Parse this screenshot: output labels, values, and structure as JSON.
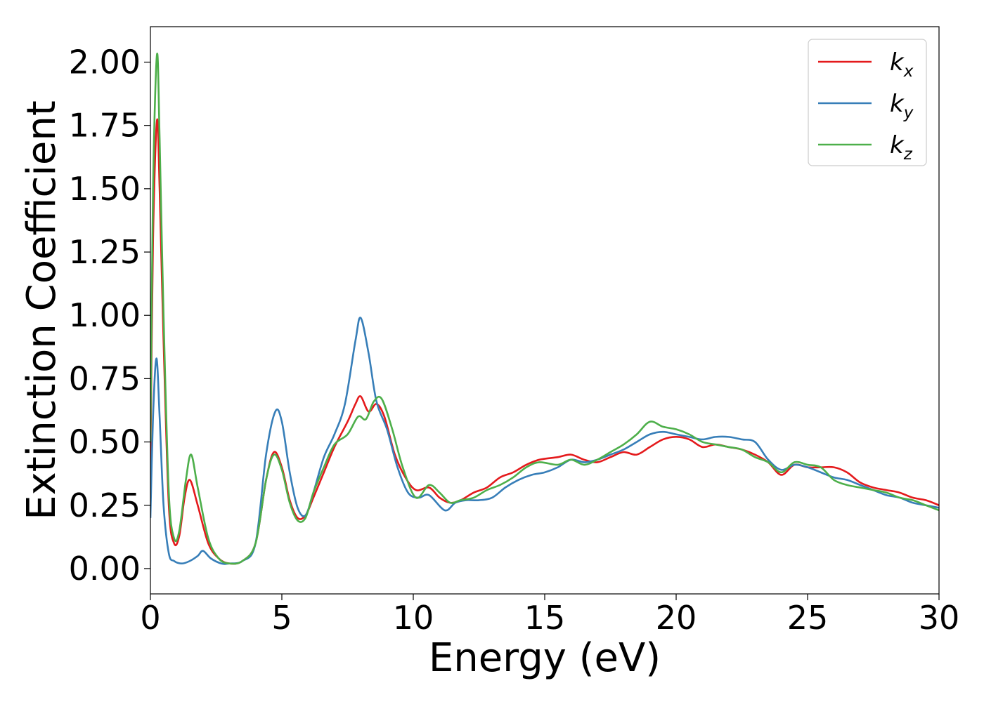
{
  "chart_data": {
    "type": "line",
    "xlabel": "Energy (eV)",
    "ylabel": "Extinction Coefficient",
    "xlim": [
      0,
      30
    ],
    "ylim": [
      -0.1,
      2.14
    ],
    "xticks": [
      0,
      5,
      10,
      15,
      20,
      25,
      30
    ],
    "yticks": [
      0.0,
      0.25,
      0.5,
      0.75,
      1.0,
      1.25,
      1.5,
      1.75,
      2.0
    ],
    "xtick_labels": [
      "0",
      "5",
      "10",
      "15",
      "20",
      "25",
      "30"
    ],
    "ytick_labels": [
      "0.00",
      "0.25",
      "0.50",
      "0.75",
      "1.00",
      "1.25",
      "1.50",
      "1.75",
      "2.00"
    ],
    "grid": false,
    "legend_position": "top-right",
    "series": [
      {
        "name": "k_x",
        "base": "k",
        "subscript": "x",
        "color": "#e41a1c",
        "points": [
          [
            0,
            0.4
          ],
          [
            0.1,
            1.3
          ],
          [
            0.25,
            1.77
          ],
          [
            0.35,
            1.5
          ],
          [
            0.5,
            0.9
          ],
          [
            0.7,
            0.25
          ],
          [
            0.9,
            0.1
          ],
          [
            1.1,
            0.13
          ],
          [
            1.3,
            0.28
          ],
          [
            1.5,
            0.35
          ],
          [
            1.8,
            0.25
          ],
          [
            2.2,
            0.1
          ],
          [
            2.6,
            0.04
          ],
          [
            3,
            0.02
          ],
          [
            3.5,
            0.03
          ],
          [
            4,
            0.1
          ],
          [
            4.4,
            0.35
          ],
          [
            4.7,
            0.46
          ],
          [
            5,
            0.4
          ],
          [
            5.3,
            0.27
          ],
          [
            5.6,
            0.2
          ],
          [
            5.9,
            0.21
          ],
          [
            6.2,
            0.28
          ],
          [
            6.6,
            0.38
          ],
          [
            7,
            0.48
          ],
          [
            7.5,
            0.58
          ],
          [
            7.8,
            0.65
          ],
          [
            8,
            0.68
          ],
          [
            8.3,
            0.62
          ],
          [
            8.6,
            0.65
          ],
          [
            8.9,
            0.6
          ],
          [
            9.3,
            0.45
          ],
          [
            9.7,
            0.36
          ],
          [
            10.1,
            0.31
          ],
          [
            10.6,
            0.32
          ],
          [
            11,
            0.28
          ],
          [
            11.4,
            0.26
          ],
          [
            11.8,
            0.27
          ],
          [
            12.3,
            0.3
          ],
          [
            12.8,
            0.32
          ],
          [
            13.3,
            0.36
          ],
          [
            13.8,
            0.38
          ],
          [
            14.3,
            0.41
          ],
          [
            14.8,
            0.43
          ],
          [
            15.5,
            0.44
          ],
          [
            16,
            0.45
          ],
          [
            16.5,
            0.43
          ],
          [
            17,
            0.42
          ],
          [
            17.5,
            0.44
          ],
          [
            18,
            0.46
          ],
          [
            18.5,
            0.45
          ],
          [
            19,
            0.48
          ],
          [
            19.5,
            0.51
          ],
          [
            20,
            0.52
          ],
          [
            20.5,
            0.51
          ],
          [
            21,
            0.48
          ],
          [
            21.5,
            0.49
          ],
          [
            22,
            0.48
          ],
          [
            22.5,
            0.47
          ],
          [
            23,
            0.45
          ],
          [
            23.5,
            0.42
          ],
          [
            24,
            0.37
          ],
          [
            24.5,
            0.41
          ],
          [
            25,
            0.4
          ],
          [
            25.5,
            0.4
          ],
          [
            26,
            0.4
          ],
          [
            26.5,
            0.38
          ],
          [
            27,
            0.34
          ],
          [
            27.5,
            0.32
          ],
          [
            28,
            0.31
          ],
          [
            28.5,
            0.3
          ],
          [
            29,
            0.28
          ],
          [
            29.5,
            0.27
          ],
          [
            30,
            0.25
          ]
        ]
      },
      {
        "name": "k_y",
        "base": "k",
        "subscript": "y",
        "color": "#377eb8",
        "points": [
          [
            0,
            0.2
          ],
          [
            0.1,
            0.6
          ],
          [
            0.23,
            0.83
          ],
          [
            0.35,
            0.6
          ],
          [
            0.5,
            0.25
          ],
          [
            0.7,
            0.06
          ],
          [
            0.9,
            0.03
          ],
          [
            1.2,
            0.02
          ],
          [
            1.5,
            0.03
          ],
          [
            1.8,
            0.05
          ],
          [
            2,
            0.07
          ],
          [
            2.3,
            0.04
          ],
          [
            2.7,
            0.02
          ],
          [
            3,
            0.02
          ],
          [
            3.5,
            0.03
          ],
          [
            4,
            0.1
          ],
          [
            4.4,
            0.45
          ],
          [
            4.75,
            0.62
          ],
          [
            5,
            0.58
          ],
          [
            5.3,
            0.38
          ],
          [
            5.6,
            0.24
          ],
          [
            5.9,
            0.21
          ],
          [
            6.2,
            0.3
          ],
          [
            6.6,
            0.44
          ],
          [
            7,
            0.53
          ],
          [
            7.4,
            0.65
          ],
          [
            7.8,
            0.9
          ],
          [
            8,
            0.99
          ],
          [
            8.3,
            0.85
          ],
          [
            8.6,
            0.66
          ],
          [
            9,
            0.55
          ],
          [
            9.4,
            0.4
          ],
          [
            9.8,
            0.3
          ],
          [
            10.2,
            0.28
          ],
          [
            10.6,
            0.29
          ],
          [
            11.2,
            0.23
          ],
          [
            11.6,
            0.26
          ],
          [
            12,
            0.27
          ],
          [
            12.5,
            0.27
          ],
          [
            13,
            0.28
          ],
          [
            13.5,
            0.32
          ],
          [
            14,
            0.35
          ],
          [
            14.5,
            0.37
          ],
          [
            15,
            0.38
          ],
          [
            15.5,
            0.4
          ],
          [
            16,
            0.43
          ],
          [
            16.5,
            0.42
          ],
          [
            17,
            0.43
          ],
          [
            17.5,
            0.45
          ],
          [
            18,
            0.47
          ],
          [
            18.5,
            0.5
          ],
          [
            19,
            0.53
          ],
          [
            19.5,
            0.54
          ],
          [
            20,
            0.53
          ],
          [
            20.5,
            0.52
          ],
          [
            21,
            0.51
          ],
          [
            21.5,
            0.52
          ],
          [
            22,
            0.52
          ],
          [
            22.5,
            0.51
          ],
          [
            23,
            0.5
          ],
          [
            23.5,
            0.43
          ],
          [
            24,
            0.39
          ],
          [
            24.5,
            0.41
          ],
          [
            25,
            0.4
          ],
          [
            25.5,
            0.38
          ],
          [
            26,
            0.36
          ],
          [
            26.5,
            0.35
          ],
          [
            27,
            0.33
          ],
          [
            27.5,
            0.31
          ],
          [
            28,
            0.29
          ],
          [
            28.5,
            0.28
          ],
          [
            29,
            0.26
          ],
          [
            29.5,
            0.25
          ],
          [
            30,
            0.24
          ]
        ]
      },
      {
        "name": "k_z",
        "base": "k",
        "subscript": "z",
        "color": "#4daf4a",
        "points": [
          [
            0,
            0.5
          ],
          [
            0.1,
            1.5
          ],
          [
            0.25,
            2.03
          ],
          [
            0.35,
            1.7
          ],
          [
            0.5,
            1.0
          ],
          [
            0.7,
            0.3
          ],
          [
            0.9,
            0.12
          ],
          [
            1.1,
            0.15
          ],
          [
            1.35,
            0.35
          ],
          [
            1.55,
            0.45
          ],
          [
            1.8,
            0.32
          ],
          [
            2.2,
            0.12
          ],
          [
            2.6,
            0.04
          ],
          [
            3,
            0.02
          ],
          [
            3.5,
            0.03
          ],
          [
            4,
            0.1
          ],
          [
            4.4,
            0.35
          ],
          [
            4.7,
            0.45
          ],
          [
            5,
            0.39
          ],
          [
            5.3,
            0.26
          ],
          [
            5.6,
            0.19
          ],
          [
            5.9,
            0.2
          ],
          [
            6.2,
            0.3
          ],
          [
            6.6,
            0.4
          ],
          [
            7,
            0.49
          ],
          [
            7.5,
            0.53
          ],
          [
            7.9,
            0.6
          ],
          [
            8.2,
            0.59
          ],
          [
            8.5,
            0.66
          ],
          [
            8.8,
            0.67
          ],
          [
            9.2,
            0.55
          ],
          [
            9.6,
            0.4
          ],
          [
            10.1,
            0.28
          ],
          [
            10.6,
            0.33
          ],
          [
            11,
            0.3
          ],
          [
            11.4,
            0.26
          ],
          [
            11.8,
            0.27
          ],
          [
            12.3,
            0.28
          ],
          [
            12.8,
            0.31
          ],
          [
            13.3,
            0.33
          ],
          [
            13.8,
            0.36
          ],
          [
            14.3,
            0.4
          ],
          [
            14.8,
            0.42
          ],
          [
            15.5,
            0.41
          ],
          [
            16,
            0.43
          ],
          [
            16.5,
            0.41
          ],
          [
            17,
            0.43
          ],
          [
            17.5,
            0.46
          ],
          [
            18,
            0.49
          ],
          [
            18.5,
            0.53
          ],
          [
            19,
            0.58
          ],
          [
            19.5,
            0.56
          ],
          [
            20,
            0.55
          ],
          [
            20.5,
            0.53
          ],
          [
            21,
            0.5
          ],
          [
            21.5,
            0.49
          ],
          [
            22,
            0.48
          ],
          [
            22.5,
            0.47
          ],
          [
            23,
            0.44
          ],
          [
            23.5,
            0.42
          ],
          [
            24,
            0.38
          ],
          [
            24.5,
            0.42
          ],
          [
            25,
            0.41
          ],
          [
            25.5,
            0.4
          ],
          [
            26,
            0.35
          ],
          [
            26.5,
            0.33
          ],
          [
            27,
            0.32
          ],
          [
            27.5,
            0.31
          ],
          [
            28,
            0.3
          ],
          [
            28.5,
            0.28
          ],
          [
            29,
            0.27
          ],
          [
            29.5,
            0.25
          ],
          [
            30,
            0.23
          ]
        ]
      }
    ]
  }
}
